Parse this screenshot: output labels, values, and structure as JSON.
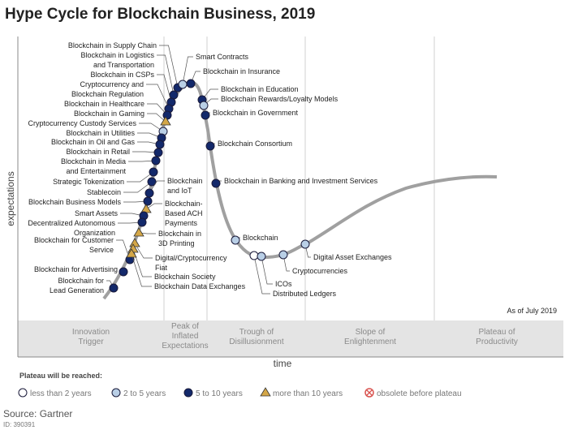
{
  "title": "Hype Cycle for Blockchain Business, 2019",
  "y_axis_label": "expectations",
  "x_axis_label": "time",
  "as_of": "As of July 2019",
  "phases": [
    "Innovation Trigger",
    "Peak of Inflated Expectations",
    "Trough of Disillusionment",
    "Slope of Enlightenment",
    "Plateau of Productivity"
  ],
  "phase_lines": [
    [
      "Innovation",
      "Trigger"
    ],
    [
      "Peak of",
      "Inflated",
      "Expectations"
    ],
    [
      "Trough of",
      "Disillusionment"
    ],
    [
      "Slope of",
      "Enlightenment"
    ],
    [
      "Plateau of",
      "Productivity"
    ]
  ],
  "legend": {
    "title": "Plateau will be reached:",
    "items": [
      {
        "key": "lt2",
        "label": "less than 2 years",
        "marker": "white-circle"
      },
      {
        "key": "2to5",
        "label": "2 to 5 years",
        "marker": "light-blue-circle"
      },
      {
        "key": "5to10",
        "label": "5 to 10 years",
        "marker": "dark-blue-circle"
      },
      {
        "key": "gt10",
        "label": "more than 10 years",
        "marker": "gold-triangle"
      },
      {
        "key": "obs",
        "label": "obsolete before plateau",
        "marker": "red-crossed-circle"
      }
    ]
  },
  "colors": {
    "white": "#ffffff",
    "light_blue": "#b9cfe6",
    "dark_blue": "#13296b",
    "gold": "#d4a748",
    "red": "#d9534f",
    "curve": "#a0a0a0",
    "band": "#e4e4e4"
  },
  "source": "Source: Gartner",
  "doc_id": "ID: 390391",
  "technologies": [
    {
      "name": [
        "Blockchain in Supply Chain"
      ],
      "plateau": "5to10"
    },
    {
      "name": [
        "Blockchain in Logistics",
        "and Transportation"
      ],
      "plateau": "5to10"
    },
    {
      "name": [
        "Blockchain in CSPs"
      ],
      "plateau": "5to10"
    },
    {
      "name": [
        "Cryptocurrency and",
        "Blockchain Regulation"
      ],
      "plateau": "5to10"
    },
    {
      "name": [
        "Blockchain in Healthcare"
      ],
      "plateau": "5to10"
    },
    {
      "name": [
        "Blockchain in Gaming"
      ],
      "plateau": "gt10"
    },
    {
      "name": [
        "Cryptocurrency Custody Services"
      ],
      "plateau": "2to5"
    },
    {
      "name": [
        "Blockchain in Utilities"
      ],
      "plateau": "5to10"
    },
    {
      "name": [
        "Blockchain in Oil and Gas"
      ],
      "plateau": "5to10"
    },
    {
      "name": [
        "Blockchain in Retail"
      ],
      "plateau": "5to10"
    },
    {
      "name": [
        "Blockchain in Media",
        "and Entertainment"
      ],
      "plateau": "5to10"
    },
    {
      "name": [
        "Strategic Tokenization"
      ],
      "plateau": "5to10"
    },
    {
      "name": [
        "Stablecoin"
      ],
      "plateau": "5to10"
    },
    {
      "name": [
        "Blockchain and IoT"
      ],
      "plateau": "5to10",
      "lines": [
        "Blockchain",
        "and IoT"
      ]
    },
    {
      "name": [
        "Blockchain Business Models"
      ],
      "plateau": "5to10"
    },
    {
      "name": [
        "Blockchain-",
        "Based ACH",
        "Payments"
      ],
      "plateau": "gt10"
    },
    {
      "name": [
        "Smart Assets"
      ],
      "plateau": "5to10"
    },
    {
      "name": [
        "Decentralized Autonomous",
        "Organization"
      ],
      "plateau": "5to10"
    },
    {
      "name": [
        "Blockchain in",
        "3D Printing"
      ],
      "plateau": "gt10"
    },
    {
      "name": [
        "Blockchain for Customer",
        "Service"
      ],
      "plateau": "5to10"
    },
    {
      "name": [
        "Digital/Cryptocurrency",
        "Fiat"
      ],
      "plateau": "gt10"
    },
    {
      "name": [
        "Blockchain Society"
      ],
      "plateau": "gt10"
    },
    {
      "name": [
        "Blockchain Data Exchanges"
      ],
      "plateau": "gt10"
    },
    {
      "name": [
        "Blockchain for Advertising"
      ],
      "plateau": "5to10"
    },
    {
      "name": [
        "Blockchain for",
        "Lead Generation"
      ],
      "plateau": "5to10"
    },
    {
      "name": [
        "Smart Contracts"
      ],
      "plateau": "2to5"
    },
    {
      "name": [
        "Blockchain in Insurance"
      ],
      "plateau": "5to10"
    },
    {
      "name": [
        "Blockchain in Education"
      ],
      "plateau": "5to10"
    },
    {
      "name": [
        "Blockchain Rewards/Loyalty Models"
      ],
      "plateau": "2to5"
    },
    {
      "name": [
        "Blockchain in Government"
      ],
      "plateau": "5to10"
    },
    {
      "name": [
        "Blockchain Consortium"
      ],
      "plateau": "5to10"
    },
    {
      "name": [
        "Blockchain in Banking and Investment Services"
      ],
      "plateau": "5to10"
    },
    {
      "name": [
        "Blockchain"
      ],
      "plateau": "2to5"
    },
    {
      "name": [
        "Distributed Ledgers"
      ],
      "plateau": "lt2"
    },
    {
      "name": [
        "ICOs"
      ],
      "plateau": "2to5"
    },
    {
      "name": [
        "Cryptocurrencies"
      ],
      "plateau": "2to5"
    },
    {
      "name": [
        "Digital Asset Exchanges"
      ],
      "plateau": "2to5"
    }
  ]
}
